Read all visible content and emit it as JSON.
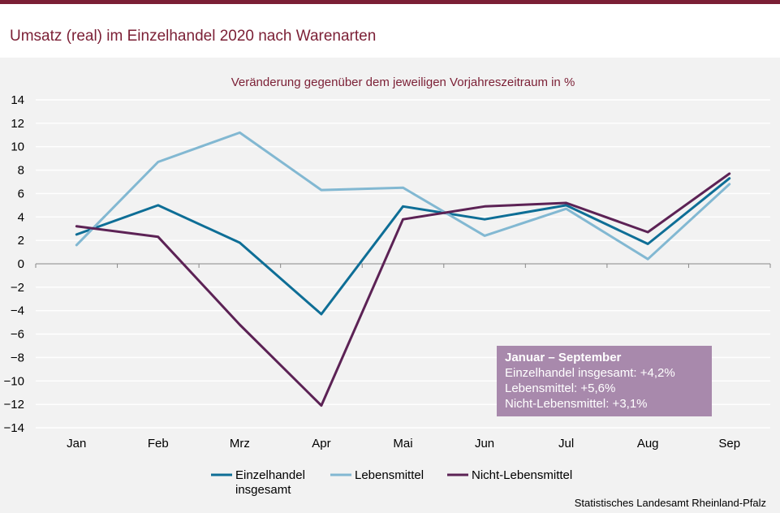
{
  "page": {
    "title": "Umsatz (real) im Einzelhandel 2020 nach Warenarten",
    "source": "Statistisches Landesamt Rheinland-Pfalz"
  },
  "colors": {
    "brand": "#7b1f35",
    "series": [
      "#0e6e96",
      "#82b8d2",
      "#5c2255"
    ],
    "info_box": "#a889ac",
    "grid": "#ffffff",
    "axis": "#888888"
  },
  "chart_data": {
    "type": "line",
    "title": "",
    "subtitle": "Veränderung  gegenüber  dem jeweiligen  Vorjahreszeitraum  in %",
    "xlabel": "",
    "ylabel": "",
    "categories": [
      "Jan",
      "Feb",
      "Mrz",
      "Apr",
      "Mai",
      "Jun",
      "Jul",
      "Aug",
      "Sep"
    ],
    "ylim": [
      -14,
      14
    ],
    "yticks": [
      14,
      12,
      10,
      8,
      6,
      4,
      2,
      0,
      -2,
      -4,
      -6,
      -8,
      -10,
      -12,
      -14
    ],
    "grid": true,
    "legend_position": "bottom",
    "series": [
      {
        "name_lines": [
          "Einzelhandel",
          "insgesamt"
        ],
        "values": [
          2.5,
          5.0,
          1.8,
          -4.3,
          4.9,
          3.8,
          5.0,
          1.7,
          7.3
        ]
      },
      {
        "name_lines": [
          "Lebensmittel"
        ],
        "values": [
          1.6,
          8.7,
          11.2,
          6.3,
          6.5,
          2.4,
          4.7,
          0.4,
          6.8
        ]
      },
      {
        "name_lines": [
          "Nicht-Lebensmittel"
        ],
        "values": [
          3.2,
          2.3,
          -5.2,
          -12.1,
          3.8,
          4.9,
          5.2,
          2.7,
          7.7
        ]
      }
    ],
    "annotation": {
      "title": "Januar – September",
      "lines": [
        "Einzelhandel  insgesamt:  +4,2%",
        "Lebensmittel:  +5,6%",
        "Nicht-Lebensmittel:  +3,1%"
      ]
    }
  }
}
